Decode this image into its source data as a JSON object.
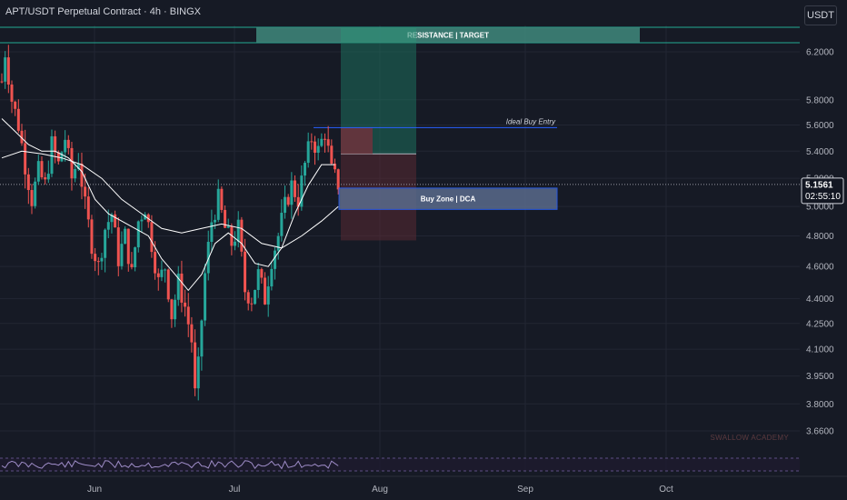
{
  "header": {
    "title": "APT/USDT Perpetual Contract · 4h · BINGX",
    "currency": "USDT"
  },
  "colors": {
    "background": "#161a25",
    "up": "#26a69a",
    "down": "#ef5350",
    "ma_fast": "#ffffff",
    "ma_slow": "#ffffff",
    "resistance": "#3f8a7c",
    "resistance_border": "#22ab94",
    "buy_zone": "#5a6b8c",
    "buy_zone_border": "#2962ff",
    "rsi_line": "#9e8cc7"
  },
  "annotations": {
    "resistance": "RESISTANCE | TARGET",
    "buy_zone": "Buy Zone | DCA",
    "ideal_entry": "Ideal Buy Entry",
    "watermark": "SWALLOW ACADEMY"
  },
  "last_price": {
    "value": "5.1561",
    "countdown": "02:55:10"
  },
  "chart_data": {
    "type": "candlestick",
    "title": "APT/USDT Perpetual Contract · 4h · BINGX",
    "y_axis": {
      "scale": "log",
      "range": [
        3.6,
        6.4
      ],
      "ticks": [
        "6.2000",
        "5.8000",
        "5.6000",
        "5.4000",
        "5.2000",
        "5.0000",
        "4.8000",
        "4.6000",
        "4.4000",
        "4.2500",
        "4.1000",
        "3.9500",
        "3.8000",
        "3.6600"
      ]
    },
    "x_axis": {
      "ticks": [
        "Jun",
        "Jul",
        "Aug",
        "Sep",
        "Oct"
      ]
    },
    "trend_path": [
      [
        0,
        5.95
      ],
      [
        0.5,
        6.2
      ],
      [
        1.5,
        5.8
      ],
      [
        2.5,
        5.6
      ],
      [
        3.5,
        5.3
      ],
      [
        4.5,
        5.05
      ],
      [
        5.5,
        5.25
      ],
      [
        6.5,
        5.15
      ],
      [
        7.5,
        5.45
      ],
      [
        8.5,
        5.3
      ],
      [
        9.5,
        5.5
      ],
      [
        10.5,
        5.2
      ],
      [
        11.5,
        5.35
      ],
      [
        12.5,
        5.0
      ],
      [
        13.5,
        4.75
      ],
      [
        14.5,
        4.6
      ],
      [
        15.5,
        4.85
      ],
      [
        16.5,
        4.95
      ],
      [
        17.5,
        4.65
      ],
      [
        18.5,
        4.8
      ],
      [
        19.5,
        4.55
      ],
      [
        20.5,
        4.9
      ],
      [
        21.5,
        5.0
      ],
      [
        22.5,
        4.75
      ],
      [
        23.5,
        4.5
      ],
      [
        24.5,
        4.6
      ],
      [
        25.5,
        4.3
      ],
      [
        26.5,
        4.5
      ],
      [
        27.5,
        4.35
      ],
      [
        28.5,
        4.15
      ],
      [
        29,
        3.85
      ],
      [
        29.5,
        4.0
      ],
      [
        30.5,
        4.55
      ],
      [
        31.5,
        4.9
      ],
      [
        32.5,
        5.05
      ],
      [
        33.5,
        4.85
      ],
      [
        34.5,
        4.75
      ],
      [
        35.5,
        4.85
      ],
      [
        36.5,
        4.45
      ],
      [
        37.5,
        4.4
      ],
      [
        38.5,
        4.55
      ],
      [
        39.5,
        4.4
      ],
      [
        40.5,
        4.65
      ],
      [
        41.5,
        4.8
      ],
      [
        42.5,
        5.0
      ],
      [
        43.5,
        5.15
      ],
      [
        44.5,
        5.05
      ],
      [
        45.5,
        5.3
      ],
      [
        46.5,
        5.5
      ],
      [
        47.5,
        5.4
      ],
      [
        48.5,
        5.55
      ],
      [
        49.5,
        5.25
      ],
      [
        50.5,
        5.16
      ]
    ],
    "ma_fast": [
      [
        0,
        5.65
      ],
      [
        2,
        5.55
      ],
      [
        4,
        5.45
      ],
      [
        6,
        5.4
      ],
      [
        8,
        5.4
      ],
      [
        10,
        5.35
      ],
      [
        12,
        5.25
      ],
      [
        14,
        5.05
      ],
      [
        16,
        4.95
      ],
      [
        18,
        4.9
      ],
      [
        20,
        4.85
      ],
      [
        22,
        4.8
      ],
      [
        24,
        4.65
      ],
      [
        26,
        4.55
      ],
      [
        28,
        4.45
      ],
      [
        30,
        4.55
      ],
      [
        32,
        4.75
      ],
      [
        34,
        4.82
      ],
      [
        36,
        4.75
      ],
      [
        38,
        4.62
      ],
      [
        40,
        4.6
      ],
      [
        42,
        4.72
      ],
      [
        44,
        4.95
      ],
      [
        46,
        5.15
      ],
      [
        48,
        5.3
      ],
      [
        50,
        5.3
      ]
    ],
    "ma_slow": [
      [
        0,
        5.35
      ],
      [
        3,
        5.4
      ],
      [
        6,
        5.38
      ],
      [
        9,
        5.35
      ],
      [
        12,
        5.3
      ],
      [
        15,
        5.2
      ],
      [
        18,
        5.05
      ],
      [
        21,
        4.95
      ],
      [
        24,
        4.85
      ],
      [
        27,
        4.82
      ],
      [
        30,
        4.85
      ],
      [
        33,
        4.88
      ],
      [
        36,
        4.85
      ],
      [
        39,
        4.75
      ],
      [
        42,
        4.72
      ],
      [
        45,
        4.8
      ],
      [
        48,
        4.9
      ],
      [
        50.5,
        5.0
      ]
    ],
    "levels": {
      "resistance": [
        6.27,
        6.38
      ],
      "buy_zone": [
        4.98,
        5.13
      ],
      "ideal_entry": 5.58,
      "take_profit": 6.2,
      "stop_loss": 4.77,
      "position_entry": 5.38,
      "short_box": [
        5.38,
        5.58
      ]
    },
    "oscillator": {
      "type": "rsi",
      "upper": 70,
      "lower": 30
    }
  }
}
